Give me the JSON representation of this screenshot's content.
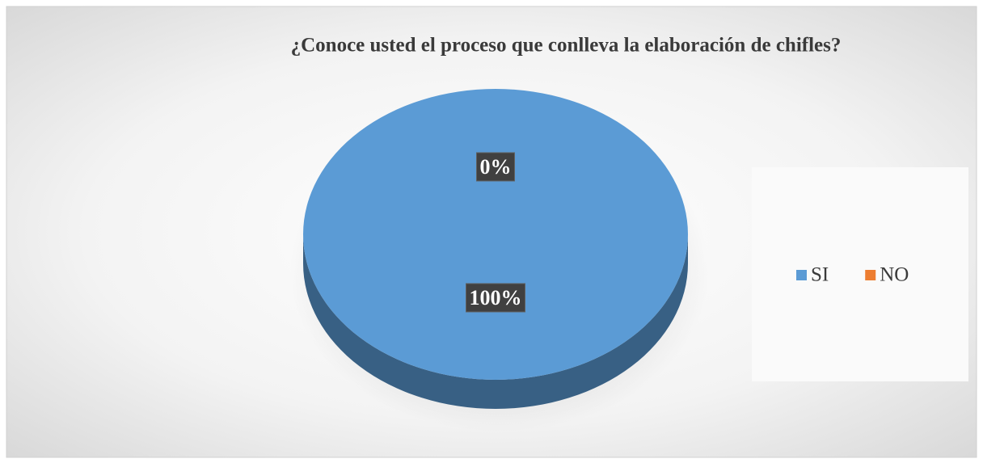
{
  "chart_data": {
    "type": "pie",
    "title": "¿Conoce usted el proceso que conlleva la elaboración de chifles?",
    "categories": [
      "SI",
      "NO"
    ],
    "values": [
      100,
      0
    ],
    "value_labels": [
      "100%",
      "0%"
    ],
    "colors": [
      "#5b9bd5",
      "#ed7d31"
    ],
    "legend": "right"
  }
}
